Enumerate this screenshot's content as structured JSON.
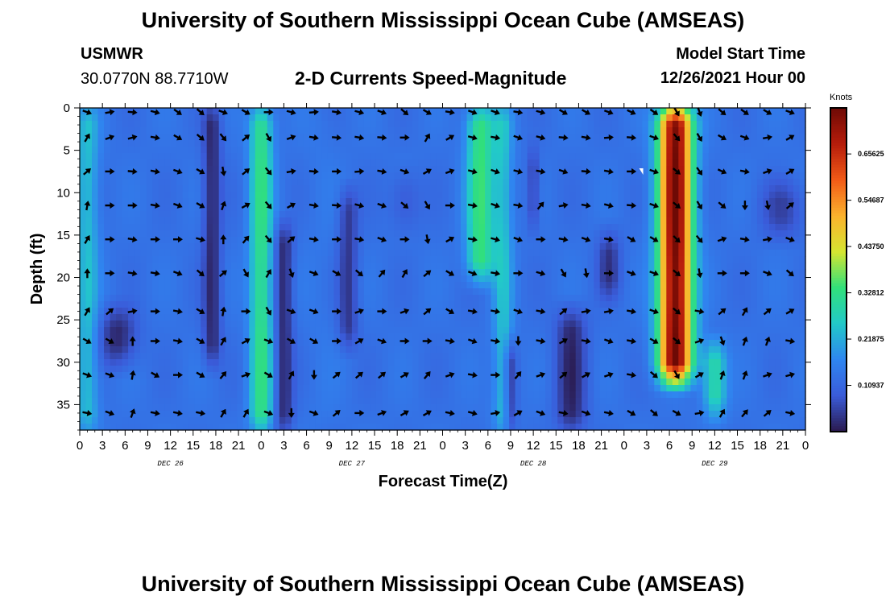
{
  "header": {
    "title": "University of Southern Mississippi Ocean Cube (AMSEAS)",
    "station": "USMWR",
    "location": "30.0770N  88.7710W",
    "subtitle": "2-D Currents Speed-Magnitude",
    "model_start_label": "Model Start Time",
    "model_start_value": "12/26/2021 Hour 00"
  },
  "footer": {
    "title": "University of Southern Mississippi Ocean Cube (AMSEAS)"
  },
  "chart_data": {
    "type": "heatmap",
    "title": "2-D Currents Speed-Magnitude",
    "xlabel": "Forecast Time(Z)",
    "ylabel": "Depth (ft)",
    "x_tick_labels": [
      "0",
      "3",
      "6",
      "9",
      "12",
      "15",
      "18",
      "21",
      "0",
      "3",
      "6",
      "9",
      "12",
      "15",
      "18",
      "21",
      "0",
      "3",
      "6",
      "9",
      "12",
      "15",
      "18",
      "21",
      "0",
      "3",
      "6",
      "9",
      "12",
      "15",
      "18",
      "21",
      "0"
    ],
    "x_range_hours": [
      0,
      96
    ],
    "day_labels": [
      {
        "label": "DEC 26",
        "hour": 12
      },
      {
        "label": "DEC 27",
        "hour": 36
      },
      {
        "label": "DEC 28",
        "hour": 60
      },
      {
        "label": "DEC 29",
        "hour": 84
      }
    ],
    "y_ticks": [
      0,
      5,
      10,
      15,
      20,
      25,
      30,
      35
    ],
    "y_range_ft": [
      0,
      38
    ],
    "colorbar": {
      "units": "Knots",
      "ticks": [
        "0.10937",
        "0.21875",
        "0.32812",
        "0.43750",
        "0.54687",
        "0.65625"
      ],
      "range": [
        0,
        0.765
      ],
      "colors": [
        "#2a1a4e",
        "#3a5bd9",
        "#2f86f0",
        "#22c9c9",
        "#31e07a",
        "#d6e531",
        "#fbb22d",
        "#f15a17",
        "#b51c0b",
        "#6e0a05"
      ]
    },
    "speed_features": [
      {
        "hour_center": 1,
        "hour_width": 1.5,
        "depth_from": 0,
        "depth_to": 38,
        "speed": 0.24
      },
      {
        "hour_center": 17.5,
        "hour_width": 1.2,
        "depth_from": 0,
        "depth_to": 30,
        "speed": 0.02
      },
      {
        "hour_center": 24,
        "hour_width": 1.5,
        "depth_from": 0,
        "depth_to": 38,
        "speed": 0.33
      },
      {
        "hour_center": 27,
        "hour_width": 1.2,
        "depth_from": 14,
        "depth_to": 38,
        "speed": 0.02
      },
      {
        "hour_center": 32,
        "hour_width": 2.5,
        "depth_from": 0,
        "depth_to": 38,
        "speed": 0.14
      },
      {
        "hour_center": 35.5,
        "hour_width": 1.3,
        "depth_from": 10,
        "depth_to": 28,
        "speed": 0.04
      },
      {
        "hour_center": 43,
        "hour_width": 2.0,
        "depth_from": 8,
        "depth_to": 14,
        "speed": 0.08
      },
      {
        "hour_center": 53,
        "hour_width": 1.8,
        "depth_from": 0,
        "depth_to": 20,
        "speed": 0.34
      },
      {
        "hour_center": 56,
        "hour_width": 1.3,
        "depth_from": 0,
        "depth_to": 38,
        "speed": 0.24
      },
      {
        "hour_center": 57,
        "hour_width": 0.8,
        "depth_from": 28,
        "depth_to": 38,
        "speed": 0.02
      },
      {
        "hour_center": 60,
        "hour_width": 0.8,
        "depth_from": 5,
        "depth_to": 14,
        "speed": 0.05
      },
      {
        "hour_center": 65,
        "hour_width": 2.0,
        "depth_from": 24,
        "depth_to": 38,
        "speed": 0.02
      },
      {
        "hour_center": 70,
        "hour_width": 1.5,
        "depth_from": 15,
        "depth_to": 22,
        "speed": 0.04
      },
      {
        "hour_center": 78.8,
        "hour_width": 2.2,
        "depth_from": 0,
        "depth_to": 32,
        "speed": 0.76
      },
      {
        "hour_center": 84,
        "hour_width": 1.5,
        "depth_from": 28,
        "depth_to": 36,
        "speed": 0.3
      },
      {
        "hour_center": 93,
        "hour_width": 3.0,
        "depth_from": 9,
        "depth_to": 15,
        "speed": 0.06
      },
      {
        "hour_center": 5,
        "hour_width": 2.5,
        "depth_from": 24,
        "depth_to": 30,
        "speed": 0.02
      }
    ],
    "arrow_depths_ft": [
      0.5,
      3.5,
      7.5,
      11.5,
      15.5,
      19.5,
      24,
      27.5,
      31.5,
      36
    ],
    "arrow_angles_deg": [
      [
        20,
        -10,
        5,
        15,
        35,
        40,
        20,
        30,
        0,
        15,
        -5,
        10,
        15,
        20,
        40,
        30,
        10,
        20,
        20,
        10,
        15,
        30,
        30,
        20,
        25,
        35,
        60,
        70,
        40,
        35,
        30,
        20
      ],
      [
        -60,
        -20,
        -15,
        10,
        30,
        40,
        50,
        -40,
        60,
        -20,
        10,
        5,
        10,
        5,
        0,
        -60,
        -30,
        15,
        10,
        20,
        15,
        5,
        10,
        -5,
        5,
        20,
        50,
        60,
        30,
        20,
        -10,
        -30
      ],
      [
        -40,
        0,
        5,
        10,
        20,
        30,
        80,
        -40,
        50,
        -10,
        5,
        0,
        -5,
        10,
        20,
        -30,
        -20,
        15,
        20,
        15,
        10,
        20,
        5,
        10,
        0,
        20,
        40,
        55,
        25,
        10,
        -20,
        -30
      ],
      [
        -80,
        0,
        0,
        10,
        20,
        30,
        -70,
        -30,
        50,
        -30,
        10,
        5,
        15,
        20,
        40,
        60,
        0,
        10,
        20,
        10,
        -50,
        -10,
        10,
        15,
        5,
        20,
        40,
        60,
        40,
        90,
        80,
        -40
      ],
      [
        -60,
        0,
        10,
        0,
        0,
        15,
        -90,
        -50,
        50,
        -40,
        10,
        0,
        10,
        20,
        0,
        80,
        -30,
        10,
        15,
        20,
        0,
        10,
        20,
        10,
        30,
        30,
        45,
        50,
        -20,
        10,
        -10,
        20
      ],
      [
        -90,
        0,
        10,
        10,
        20,
        40,
        -40,
        60,
        -60,
        70,
        20,
        30,
        40,
        -50,
        -60,
        -40,
        30,
        20,
        10,
        0,
        15,
        60,
        80,
        0,
        20,
        20,
        40,
        80,
        0,
        0,
        20,
        40
      ],
      [
        -60,
        -40,
        -10,
        0,
        10,
        30,
        -80,
        0,
        60,
        20,
        20,
        0,
        -20,
        0,
        -20,
        -40,
        30,
        10,
        10,
        20,
        10,
        -40,
        -10,
        -10,
        10,
        20,
        40,
        10,
        -40,
        -60,
        -40,
        -30
      ],
      [
        30,
        30,
        -90,
        0,
        10,
        30,
        -60,
        -30,
        20,
        30,
        30,
        0,
        -30,
        20,
        0,
        0,
        10,
        20,
        10,
        90,
        10,
        -30,
        10,
        20,
        10,
        30,
        40,
        -20,
        70,
        -70,
        -70,
        10
      ],
      [
        20,
        20,
        -80,
        30,
        0,
        30,
        -50,
        -20,
        30,
        -60,
        90,
        -40,
        -40,
        -40,
        -30,
        -50,
        -20,
        10,
        0,
        -50,
        -20,
        -40,
        -30,
        -20,
        10,
        40,
        60,
        -30,
        -70,
        -70,
        -20,
        -15
      ],
      [
        10,
        20,
        -70,
        10,
        10,
        10,
        -60,
        -60,
        20,
        90,
        20,
        -40,
        0,
        -20,
        -30,
        -30,
        10,
        15,
        -10,
        -30,
        20,
        10,
        20,
        10,
        30,
        40,
        30,
        -10,
        -60,
        -50,
        -40,
        10
      ]
    ],
    "max_marker": {
      "hour": 74,
      "depth": 7.5
    }
  }
}
